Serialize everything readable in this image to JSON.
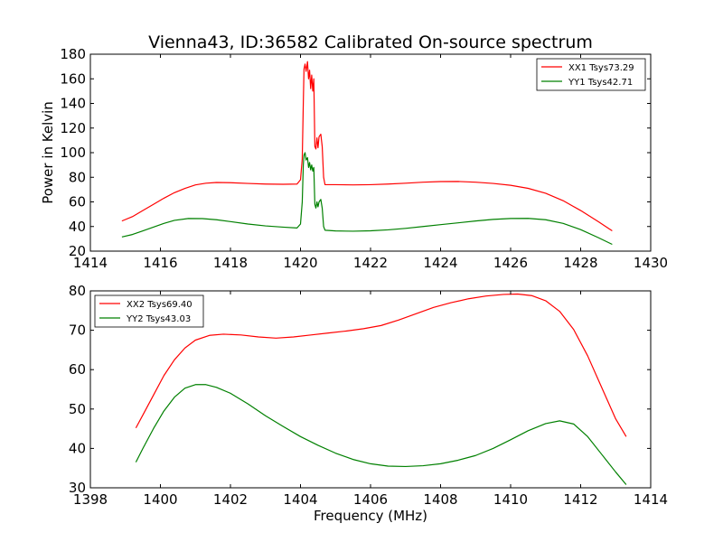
{
  "chart_data": [
    {
      "type": "line",
      "title": "Vienna43, ID:36582 Calibrated On-source spectrum",
      "xlabel": "",
      "ylabel": "Power in Kelvin",
      "xlim": [
        1414,
        1430
      ],
      "ylim": [
        20,
        180
      ],
      "xticks": [
        "1414",
        "1416",
        "1418",
        "1420",
        "1422",
        "1424",
        "1426",
        "1428",
        "1430"
      ],
      "yticks": [
        "20",
        "40",
        "60",
        "80",
        "100",
        "120",
        "140",
        "160",
        "180"
      ],
      "grid": false,
      "legend_position": "top-right",
      "series": [
        {
          "name": "XX1 Tsys73.29",
          "color": "#ff0000",
          "points": [
            [
              1414.9,
              44.5
            ],
            [
              1415.2,
              48
            ],
            [
              1415.5,
              53
            ],
            [
              1415.8,
              58
            ],
            [
              1416.1,
              63
            ],
            [
              1416.4,
              67.5
            ],
            [
              1416.7,
              71
            ],
            [
              1417.0,
              73.8
            ],
            [
              1417.3,
              75.2
            ],
            [
              1417.6,
              75.8
            ],
            [
              1418.0,
              75.6
            ],
            [
              1418.5,
              75
            ],
            [
              1419.0,
              74.5
            ],
            [
              1419.5,
              74.3
            ],
            [
              1419.9,
              74.5
            ],
            [
              1420.0,
              78
            ],
            [
              1420.05,
              95
            ],
            [
              1420.08,
              140
            ],
            [
              1420.1,
              168
            ],
            [
              1420.13,
              172
            ],
            [
              1420.16,
              166
            ],
            [
              1420.2,
              174
            ],
            [
              1420.23,
              160
            ],
            [
              1420.26,
              167
            ],
            [
              1420.29,
              152
            ],
            [
              1420.32,
              163
            ],
            [
              1420.35,
              150
            ],
            [
              1420.38,
              160
            ],
            [
              1420.41,
              105
            ],
            [
              1420.44,
              103
            ],
            [
              1420.47,
              112
            ],
            [
              1420.5,
              104
            ],
            [
              1420.53,
              113
            ],
            [
              1420.58,
              115
            ],
            [
              1420.62,
              105
            ],
            [
              1420.66,
              80
            ],
            [
              1420.7,
              74
            ],
            [
              1421.0,
              74
            ],
            [
              1421.5,
              73.8
            ],
            [
              1422.0,
              74
            ],
            [
              1422.5,
              74.5
            ],
            [
              1423.0,
              75.2
            ],
            [
              1423.5,
              76
            ],
            [
              1424.0,
              76.5
            ],
            [
              1424.5,
              76.6
            ],
            [
              1425.0,
              76
            ],
            [
              1425.5,
              75
            ],
            [
              1426.0,
              73.5
            ],
            [
              1426.5,
              71
            ],
            [
              1427.0,
              67
            ],
            [
              1427.5,
              61
            ],
            [
              1428.0,
              53
            ],
            [
              1428.5,
              44
            ],
            [
              1428.9,
              36.5
            ]
          ]
        },
        {
          "name": "YY1 Tsys42.71",
          "color": "#008000",
          "points": [
            [
              1414.9,
              31.5
            ],
            [
              1415.2,
              33.5
            ],
            [
              1415.5,
              36.5
            ],
            [
              1415.8,
              39.5
            ],
            [
              1416.1,
              42.5
            ],
            [
              1416.4,
              45
            ],
            [
              1416.8,
              46.5
            ],
            [
              1417.2,
              46.4
            ],
            [
              1417.6,
              45.5
            ],
            [
              1418.0,
              44
            ],
            [
              1418.5,
              42
            ],
            [
              1419.0,
              40.5
            ],
            [
              1419.5,
              39.5
            ],
            [
              1419.9,
              38.8
            ],
            [
              1420.0,
              42
            ],
            [
              1420.05,
              60
            ],
            [
              1420.08,
              90
            ],
            [
              1420.1,
              98
            ],
            [
              1420.13,
              100
            ],
            [
              1420.16,
              94
            ],
            [
              1420.2,
              96
            ],
            [
              1420.23,
              88
            ],
            [
              1420.26,
              92
            ],
            [
              1420.29,
              86
            ],
            [
              1420.32,
              90
            ],
            [
              1420.35,
              85
            ],
            [
              1420.38,
              88
            ],
            [
              1420.41,
              58
            ],
            [
              1420.44,
              55
            ],
            [
              1420.47,
              60
            ],
            [
              1420.5,
              56
            ],
            [
              1420.53,
              60
            ],
            [
              1420.58,
              62
            ],
            [
              1420.62,
              55
            ],
            [
              1420.66,
              40
            ],
            [
              1420.7,
              37
            ],
            [
              1421.0,
              36.4
            ],
            [
              1421.5,
              36.2
            ],
            [
              1422.0,
              36.5
            ],
            [
              1422.5,
              37.3
            ],
            [
              1423.0,
              38.5
            ],
            [
              1423.5,
              40
            ],
            [
              1424.0,
              41.5
            ],
            [
              1424.5,
              43
            ],
            [
              1425.0,
              44.5
            ],
            [
              1425.5,
              45.8
            ],
            [
              1426.0,
              46.5
            ],
            [
              1426.5,
              46.6
            ],
            [
              1427.0,
              45.5
            ],
            [
              1427.5,
              42.5
            ],
            [
              1428.0,
              37.5
            ],
            [
              1428.5,
              31
            ],
            [
              1428.9,
              25.5
            ]
          ]
        }
      ]
    },
    {
      "type": "line",
      "title": "",
      "xlabel": "Frequency (MHz)",
      "ylabel": "",
      "xlim": [
        1398,
        1414
      ],
      "ylim": [
        30,
        80
      ],
      "xticks": [
        "1398",
        "1400",
        "1402",
        "1404",
        "1406",
        "1408",
        "1410",
        "1412",
        "1414"
      ],
      "yticks": [
        "30",
        "40",
        "50",
        "60",
        "70",
        "80"
      ],
      "grid": false,
      "legend_position": "top-left",
      "series": [
        {
          "name": "XX2 Tsys69.40",
          "color": "#ff0000",
          "points": [
            [
              1399.3,
              45.2
            ],
            [
              1399.5,
              48.5
            ],
            [
              1399.8,
              53.5
            ],
            [
              1400.1,
              58.5
            ],
            [
              1400.4,
              62.5
            ],
            [
              1400.7,
              65.5
            ],
            [
              1401.0,
              67.5
            ],
            [
              1401.4,
              68.7
            ],
            [
              1401.8,
              69
            ],
            [
              1402.3,
              68.8
            ],
            [
              1402.8,
              68.3
            ],
            [
              1403.3,
              68
            ],
            [
              1403.8,
              68.3
            ],
            [
              1404.3,
              68.8
            ],
            [
              1404.8,
              69.3
            ],
            [
              1405.3,
              69.8
            ],
            [
              1405.8,
              70.4
            ],
            [
              1406.3,
              71.2
            ],
            [
              1406.8,
              72.6
            ],
            [
              1407.3,
              74.2
            ],
            [
              1407.8,
              75.8
            ],
            [
              1408.3,
              77
            ],
            [
              1408.8,
              78
            ],
            [
              1409.3,
              78.7
            ],
            [
              1409.8,
              79.1
            ],
            [
              1410.2,
              79.2
            ],
            [
              1410.6,
              78.8
            ],
            [
              1411.0,
              77.5
            ],
            [
              1411.4,
              74.8
            ],
            [
              1411.8,
              70.2
            ],
            [
              1412.2,
              63.5
            ],
            [
              1412.6,
              55.5
            ],
            [
              1413.0,
              47.5
            ],
            [
              1413.3,
              43
            ]
          ]
        },
        {
          "name": "YY2 Tsys43.03",
          "color": "#008000",
          "points": [
            [
              1399.3,
              36.5
            ],
            [
              1399.5,
              40
            ],
            [
              1399.8,
              45
            ],
            [
              1400.1,
              49.5
            ],
            [
              1400.4,
              53
            ],
            [
              1400.7,
              55.3
            ],
            [
              1401.0,
              56.2
            ],
            [
              1401.3,
              56.2
            ],
            [
              1401.6,
              55.5
            ],
            [
              1402.0,
              54
            ],
            [
              1402.5,
              51.3
            ],
            [
              1403.0,
              48.3
            ],
            [
              1403.5,
              45.6
            ],
            [
              1404.0,
              43
            ],
            [
              1404.5,
              40.8
            ],
            [
              1405.0,
              38.8
            ],
            [
              1405.5,
              37.2
            ],
            [
              1406.0,
              36.1
            ],
            [
              1406.5,
              35.5
            ],
            [
              1407.0,
              35.4
            ],
            [
              1407.5,
              35.6
            ],
            [
              1408.0,
              36.1
            ],
            [
              1408.5,
              37
            ],
            [
              1409.0,
              38.2
            ],
            [
              1409.5,
              40
            ],
            [
              1410.0,
              42.2
            ],
            [
              1410.5,
              44.5
            ],
            [
              1411.0,
              46.3
            ],
            [
              1411.4,
              47
            ],
            [
              1411.8,
              46.2
            ],
            [
              1412.2,
              43
            ],
            [
              1412.6,
              38.5
            ],
            [
              1413.0,
              34
            ],
            [
              1413.3,
              30.8
            ]
          ]
        }
      ]
    }
  ]
}
